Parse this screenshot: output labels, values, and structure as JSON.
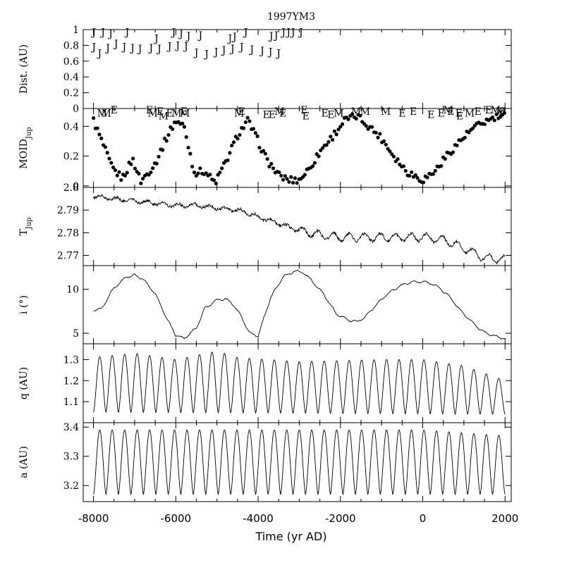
{
  "chart_data": [
    {
      "type": "scatter",
      "panel": "dist",
      "title": "1997YM3",
      "ylabel": "Dist. (AU)",
      "xlim": [
        -8250,
        2150
      ],
      "ylim": [
        0,
        1.0
      ],
      "yticks": [
        0,
        0.2,
        0.4,
        0.6,
        0.8,
        1
      ],
      "ytick_labels": [
        "0",
        "0.2",
        "0.4",
        "0.6",
        "0.8",
        "1"
      ],
      "markers": [
        {
          "label": "J",
          "x": -7990,
          "y": 0.97
        },
        {
          "label": "J",
          "x": -7770,
          "y": 0.97
        },
        {
          "label": "J",
          "x": -7580,
          "y": 0.95
        },
        {
          "label": "J",
          "x": -7180,
          "y": 0.97
        },
        {
          "label": "J",
          "x": -6050,
          "y": 0.97
        },
        {
          "label": "J",
          "x": -5870,
          "y": 0.95
        },
        {
          "label": "J",
          "x": -5690,
          "y": 0.92
        },
        {
          "label": "J",
          "x": -5400,
          "y": 0.93
        },
        {
          "label": "J",
          "x": -4680,
          "y": 0.89
        },
        {
          "label": "J",
          "x": -4570,
          "y": 0.91
        },
        {
          "label": "J",
          "x": -4300,
          "y": 0.97
        },
        {
          "label": "J",
          "x": -3680,
          "y": 0.92
        },
        {
          "label": "J",
          "x": -3560,
          "y": 0.93
        },
        {
          "label": "J",
          "x": -3380,
          "y": 0.97
        },
        {
          "label": "J",
          "x": -3260,
          "y": 0.97
        },
        {
          "label": "J",
          "x": -3150,
          "y": 0.97
        },
        {
          "label": "J",
          "x": -2960,
          "y": 0.97
        },
        {
          "label": "J",
          "x": -6470,
          "y": 0.89
        },
        {
          "label": "J",
          "x": -7990,
          "y": 0.78
        },
        {
          "label": "J",
          "x": -7850,
          "y": 0.7
        },
        {
          "label": "J",
          "x": -7650,
          "y": 0.77
        },
        {
          "label": "J",
          "x": -7450,
          "y": 0.82
        },
        {
          "label": "J",
          "x": -7250,
          "y": 0.78
        },
        {
          "label": "J",
          "x": -7050,
          "y": 0.77
        },
        {
          "label": "J",
          "x": -6870,
          "y": 0.76
        },
        {
          "label": "J",
          "x": -6600,
          "y": 0.77
        },
        {
          "label": "J",
          "x": -6400,
          "y": 0.76
        },
        {
          "label": "J",
          "x": -6150,
          "y": 0.79
        },
        {
          "label": "J",
          "x": -5950,
          "y": 0.8
        },
        {
          "label": "J",
          "x": -5750,
          "y": 0.79
        },
        {
          "label": "J",
          "x": -5500,
          "y": 0.71
        },
        {
          "label": "J",
          "x": -5250,
          "y": 0.69
        },
        {
          "label": "J",
          "x": -5020,
          "y": 0.72
        },
        {
          "label": "J",
          "x": -4830,
          "y": 0.74
        },
        {
          "label": "J",
          "x": -4620,
          "y": 0.76
        },
        {
          "label": "J",
          "x": -4400,
          "y": 0.78
        },
        {
          "label": "J",
          "x": -4150,
          "y": 0.75
        },
        {
          "label": "J",
          "x": -3900,
          "y": 0.73
        },
        {
          "label": "J",
          "x": -3700,
          "y": 0.72
        },
        {
          "label": "J",
          "x": -3500,
          "y": 0.7
        }
      ]
    },
    {
      "type": "scatter",
      "panel": "moid",
      "ylabel_main": "MOID",
      "ylabel_sub": "Jup",
      "xlim": [
        -8250,
        2150
      ],
      "ylim": [
        -0.01,
        0.52
      ],
      "yticks": [
        0,
        0.2,
        0.4
      ],
      "ytick_labels": [
        "0",
        "0.2",
        "0.4"
      ],
      "markers": [
        {
          "label": "M",
          "x": -7790,
          "y": 0.49
        },
        {
          "label": "M",
          "x": -7690,
          "y": 0.49
        },
        {
          "label": "E",
          "x": -7500,
          "y": 0.51
        },
        {
          "label": "E",
          "x": -6640,
          "y": 0.51
        },
        {
          "label": "M",
          "x": -6560,
          "y": 0.49
        },
        {
          "label": "E",
          "x": -6380,
          "y": 0.5
        },
        {
          "label": "M",
          "x": -6300,
          "y": 0.47
        },
        {
          "label": "E",
          "x": -6150,
          "y": 0.49
        },
        {
          "label": "M",
          "x": -5980,
          "y": 0.49
        },
        {
          "label": "E",
          "x": -5800,
          "y": 0.5
        },
        {
          "label": "M",
          "x": -5780,
          "y": 0.49
        },
        {
          "label": "M",
          "x": -4460,
          "y": 0.49
        },
        {
          "label": "E",
          "x": -4400,
          "y": 0.5
        },
        {
          "label": "E",
          "x": -3800,
          "y": 0.48
        },
        {
          "label": "E",
          "x": -3660,
          "y": 0.48
        },
        {
          "label": "M",
          "x": -3480,
          "y": 0.5
        },
        {
          "label": "E",
          "x": -3400,
          "y": 0.49
        },
        {
          "label": "E",
          "x": -2880,
          "y": 0.51
        },
        {
          "label": "E",
          "x": -2840,
          "y": 0.47
        },
        {
          "label": "E",
          "x": -2380,
          "y": 0.49
        },
        {
          "label": "E",
          "x": -2230,
          "y": 0.48
        },
        {
          "label": "M",
          "x": -2040,
          "y": 0.49
        },
        {
          "label": "M",
          "x": -1620,
          "y": 0.5
        },
        {
          "label": "M",
          "x": -1400,
          "y": 0.5
        },
        {
          "label": "M",
          "x": -900,
          "y": 0.5
        },
        {
          "label": "E",
          "x": -500,
          "y": 0.49
        },
        {
          "label": "E",
          "x": -230,
          "y": 0.5
        },
        {
          "label": "E",
          "x": 200,
          "y": 0.48
        },
        {
          "label": "E",
          "x": 450,
          "y": 0.49
        },
        {
          "label": "M",
          "x": 620,
          "y": 0.51
        },
        {
          "label": "E",
          "x": 680,
          "y": 0.5
        },
        {
          "label": "E",
          "x": 880,
          "y": 0.49
        },
        {
          "label": "E",
          "x": 900,
          "y": 0.47
        },
        {
          "label": "M",
          "x": 1140,
          "y": 0.49
        },
        {
          "label": "E",
          "x": 1340,
          "y": 0.5
        },
        {
          "label": "E",
          "x": 1600,
          "y": 0.51
        },
        {
          "label": "M",
          "x": 1770,
          "y": 0.51
        },
        {
          "label": "M",
          "x": 1900,
          "y": 0.5
        },
        {
          "label": "E",
          "x": 1940,
          "y": 0.5
        }
      ]
    },
    {
      "type": "line",
      "panel": "tjup",
      "ylabel_main": "T",
      "ylabel_sub": "Jup",
      "xlim": [
        -8250,
        2150
      ],
      "ylim": [
        2.7655,
        2.8
      ],
      "yticks": [
        2.77,
        2.78,
        2.79,
        2.8
      ],
      "ytick_labels": [
        "2.77",
        "2.78",
        "2.79",
        "2.8"
      ],
      "x": [
        -8000,
        -7500,
        -7000,
        -6500,
        -6000,
        -5500,
        -5000,
        -4500,
        -4300,
        -4000,
        -3500,
        -3000,
        -2500,
        -2000,
        -1500,
        -1000,
        -500,
        0,
        500,
        1000,
        1500,
        2000
      ],
      "y": [
        2.796,
        2.795,
        2.794,
        2.793,
        2.792,
        2.792,
        2.791,
        2.79,
        2.789,
        2.787,
        2.784,
        2.781,
        2.779,
        2.778,
        2.778,
        2.778,
        2.778,
        2.778,
        2.777,
        2.773,
        2.769,
        2.768
      ]
    },
    {
      "type": "line",
      "panel": "incl",
      "ylabel": "i (°)",
      "xlim": [
        -8250,
        2150
      ],
      "ylim": [
        3.8,
        12.7
      ],
      "yticks": [
        5,
        10
      ],
      "ytick_labels": [
        "5",
        "10"
      ],
      "x": [
        -8000,
        -7800,
        -7500,
        -7200,
        -7000,
        -6800,
        -6500,
        -6200,
        -6000,
        -5800,
        -5500,
        -5300,
        -5000,
        -4800,
        -4600,
        -4400,
        -4200,
        -4000,
        -3700,
        -3400,
        -3100,
        -2900,
        -2700,
        -2400,
        -2100,
        -1800,
        -1600,
        -1400,
        -1200,
        -900,
        -600,
        -300,
        0,
        300,
        600,
        900,
        1200,
        1500,
        1800,
        2000
      ],
      "y": [
        7.6,
        7.8,
        10.2,
        11.4,
        11.6,
        11.2,
        9.5,
        6.5,
        4.8,
        4.4,
        5.6,
        7.8,
        8.8,
        8.9,
        8.3,
        6.8,
        5.0,
        4.7,
        9.0,
        11.4,
        12.1,
        11.9,
        11.0,
        9.4,
        7.2,
        6.5,
        6.3,
        6.8,
        7.9,
        9.3,
        10.3,
        10.8,
        10.9,
        10.5,
        9.4,
        7.7,
        6.2,
        5.1,
        4.6,
        4.4
      ]
    },
    {
      "type": "line",
      "panel": "peri",
      "ylabel": "q (AU)",
      "xlim": [
        -8250,
        2150
      ],
      "ylim": [
        1.0,
        1.375
      ],
      "yticks": [
        1.1,
        1.2,
        1.3
      ],
      "ytick_labels": [
        "1.1",
        "1.2",
        "1.3"
      ],
      "cycles": 33,
      "min_start": 1.05,
      "min_end": 1.04,
      "amplitude_profile_x": [
        -8000,
        -7000,
        -6000,
        -5000,
        -4500,
        -3000,
        -1000,
        0,
        1000,
        2000
      ],
      "amplitude_profile_y": [
        1.31,
        1.33,
        1.3,
        1.34,
        1.31,
        1.29,
        1.3,
        1.3,
        1.27,
        1.2
      ]
    },
    {
      "type": "line",
      "panel": "semi",
      "ylabel": "a (AU)",
      "xlabel": "Time (yr AD)",
      "xlim": [
        -8250,
        2150
      ],
      "ylim": [
        3.145,
        3.415
      ],
      "yticks": [
        3.2,
        3.3,
        3.4
      ],
      "ytick_labels": [
        "3.2",
        "3.3",
        "3.4"
      ],
      "xticks": [
        -8000,
        -6000,
        -4000,
        -2000,
        0,
        2000
      ],
      "xtick_labels": [
        "-8000",
        "-6000",
        "-4000",
        "-2000",
        "0",
        "2000"
      ],
      "cycles": 33,
      "min_value": 3.17,
      "amplitude_profile_x": [
        -8000,
        -6000,
        -4000,
        -2000,
        0,
        1000,
        2000
      ],
      "amplitude_profile_y": [
        3.39,
        3.39,
        3.39,
        3.39,
        3.39,
        3.38,
        3.37
      ]
    }
  ]
}
